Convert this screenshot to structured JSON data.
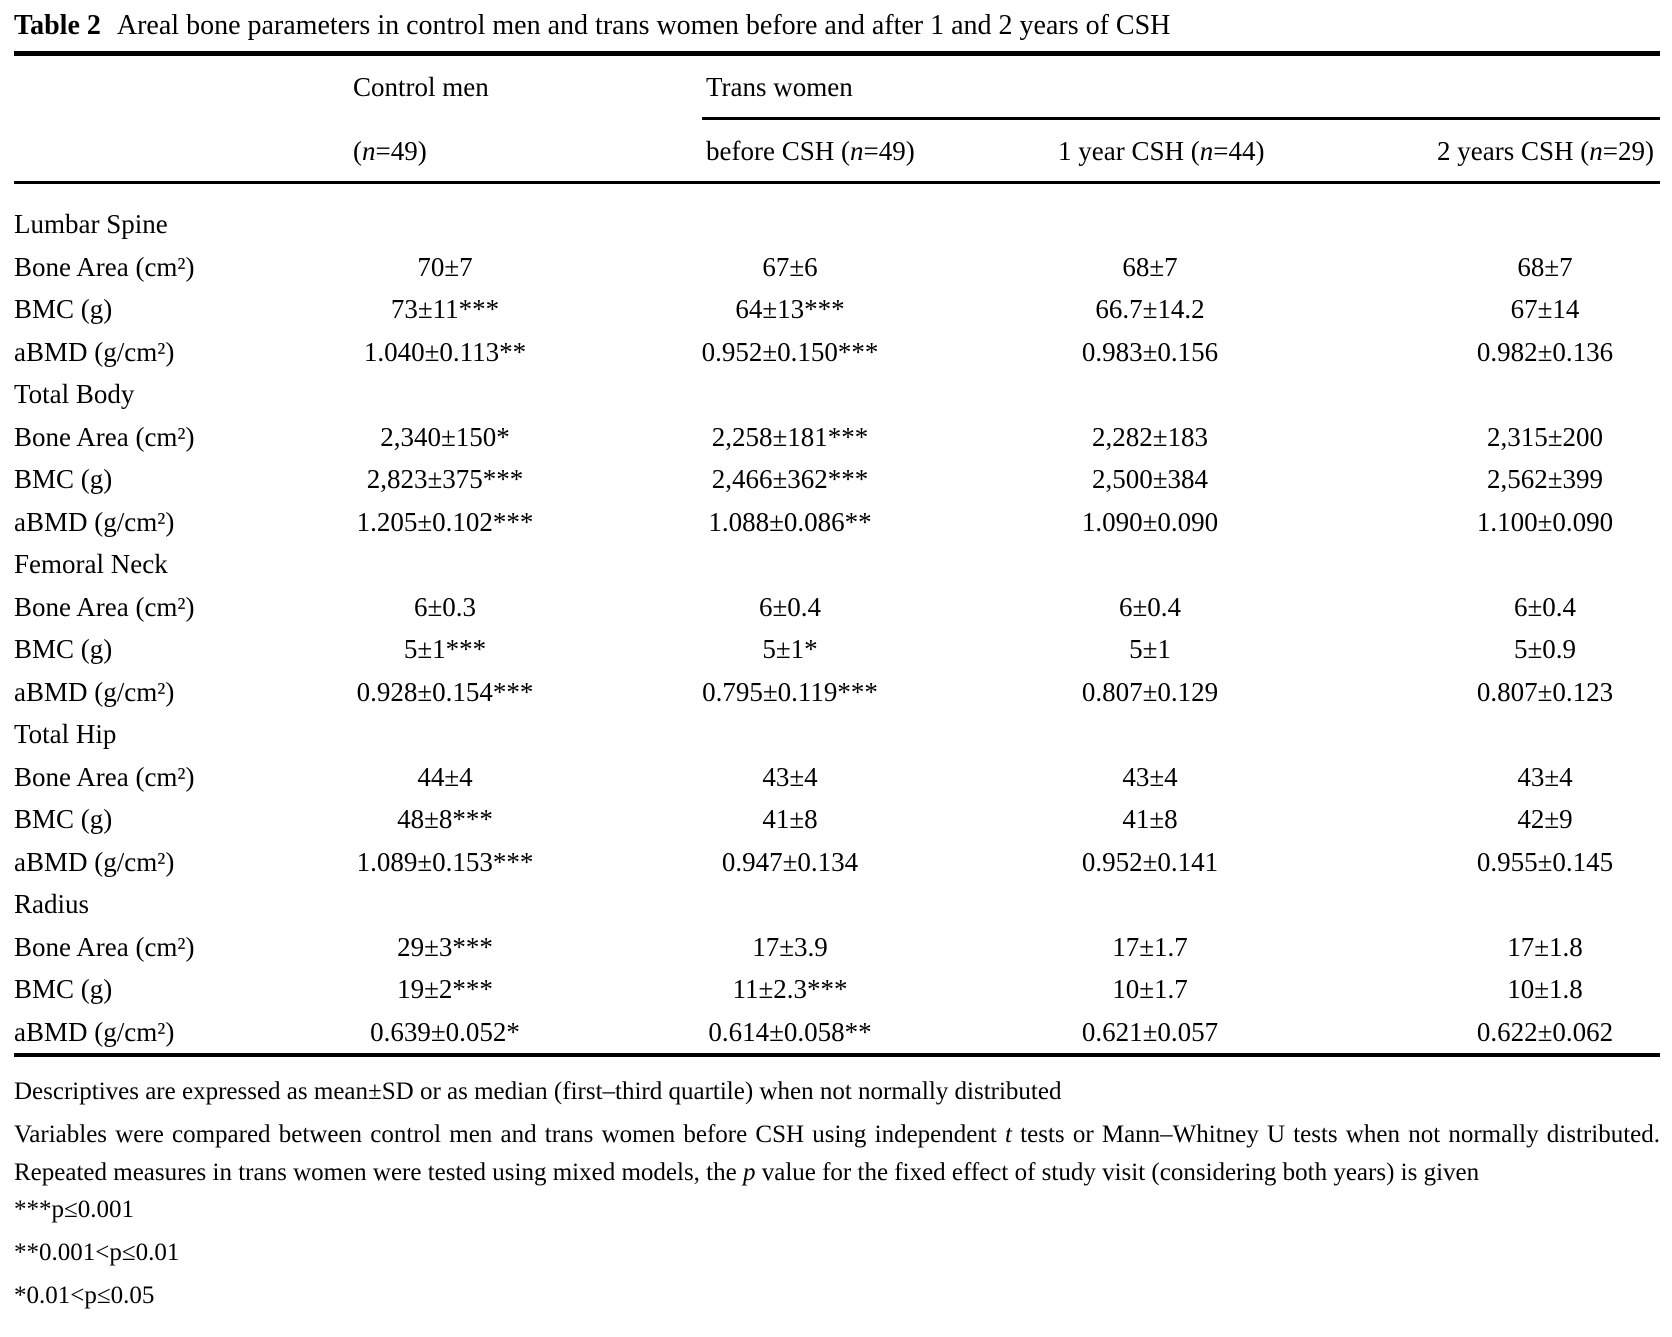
{
  "title": {
    "label": "Table 2",
    "text": "Areal bone parameters in control men and trans women before and after 1 and 2 years of CSH"
  },
  "header": {
    "col_control": "Control men",
    "col_trans": "Trans women",
    "sub_control": [
      {
        "t": "(",
        "i": false
      },
      {
        "t": "n",
        "i": true
      },
      {
        "t": "=49)",
        "i": false
      }
    ],
    "sub_before": [
      {
        "t": "before CSH (",
        "i": false
      },
      {
        "t": "n",
        "i": true
      },
      {
        "t": "=49)",
        "i": false
      }
    ],
    "sub_1year": [
      {
        "t": "1 year CSH (",
        "i": false
      },
      {
        "t": "n",
        "i": true
      },
      {
        "t": "=44)",
        "i": false
      }
    ],
    "sub_2years": [
      {
        "t": "2 years CSH (",
        "i": false
      },
      {
        "t": "n",
        "i": true
      },
      {
        "t": "=29)",
        "i": false
      }
    ]
  },
  "sections": [
    {
      "name": "Lumbar Spine",
      "rows": [
        {
          "label": "Bone Area (cm²)",
          "values": [
            "70±7",
            "67±6",
            "68±7",
            "68±7"
          ]
        },
        {
          "label": "BMC (g)",
          "values": [
            "73±11***",
            "64±13***",
            "66.7±14.2",
            "67±14"
          ]
        },
        {
          "label": "aBMD (g/cm²)",
          "values": [
            "1.040±0.113**",
            "0.952±0.150***",
            "0.983±0.156",
            "0.982±0.136"
          ]
        }
      ]
    },
    {
      "name": "Total Body",
      "rows": [
        {
          "label": "Bone Area (cm²)",
          "values": [
            "2,340±150*",
            "2,258±181***",
            "2,282±183",
            "2,315±200"
          ]
        },
        {
          "label": "BMC (g)",
          "values": [
            "2,823±375***",
            "2,466±362***",
            "2,500±384",
            "2,562±399"
          ]
        },
        {
          "label": "aBMD (g/cm²)",
          "values": [
            "1.205±0.102***",
            "1.088±0.086**",
            "1.090±0.090",
            "1.100±0.090"
          ]
        }
      ]
    },
    {
      "name": "Femoral Neck",
      "rows": [
        {
          "label": "Bone Area (cm²)",
          "values": [
            "6±0.3",
            "6±0.4",
            "6±0.4",
            "6±0.4"
          ]
        },
        {
          "label": "BMC (g)",
          "values": [
            "5±1***",
            "5±1*",
            "5±1",
            "5±0.9"
          ]
        },
        {
          "label": "aBMD (g/cm²)",
          "values": [
            "0.928±0.154***",
            "0.795±0.119***",
            "0.807±0.129",
            "0.807±0.123"
          ]
        }
      ]
    },
    {
      "name": "Total Hip",
      "rows": [
        {
          "label": "Bone Area (cm²)",
          "values": [
            "44±4",
            "43±4",
            "43±4",
            "43±4"
          ]
        },
        {
          "label": "BMC (g)",
          "values": [
            "48±8***",
            "41±8",
            "41±8",
            "42±9"
          ]
        },
        {
          "label": "aBMD (g/cm²)",
          "values": [
            "1.089±0.153***",
            "0.947±0.134",
            "0.952±0.141",
            "0.955±0.145"
          ]
        }
      ]
    },
    {
      "name": "Radius",
      "rows": [
        {
          "label": "Bone Area (cm²)",
          "values": [
            "29±3***",
            "17±3.9",
            "17±1.7",
            "17±1.8"
          ]
        },
        {
          "label": "BMC (g)",
          "values": [
            "19±2***",
            "11±2.3***",
            "10±1.7",
            "10±1.8"
          ]
        },
        {
          "label": "aBMD (g/cm²)",
          "values": [
            "0.639±0.052*",
            "0.614±0.058**",
            "0.621±0.057",
            "0.622±0.062"
          ]
        }
      ]
    }
  ],
  "footnotes": {
    "descriptives": "Descriptives are expressed as mean±SD or as median (first–third quartile) when not normally distributed",
    "methods": [
      {
        "t": "Variables were compared between control men and trans women before CSH using independent ",
        "i": false
      },
      {
        "t": "t",
        "i": true
      },
      {
        "t": " tests or Mann–Whitney U tests when not normally distributed. Repeated measures in trans women were tested using mixed models, the ",
        "i": false
      },
      {
        "t": "p",
        "i": true
      },
      {
        "t": " value for the fixed effect of study visit (considering both years) is given",
        "i": false
      }
    ],
    "sig": [
      "***p≤0.001",
      "**0.001<p≤0.01",
      "*0.01<p≤0.05"
    ]
  },
  "colors": {
    "background": "#ffffff",
    "text": "#000000",
    "rule": "#000000"
  }
}
